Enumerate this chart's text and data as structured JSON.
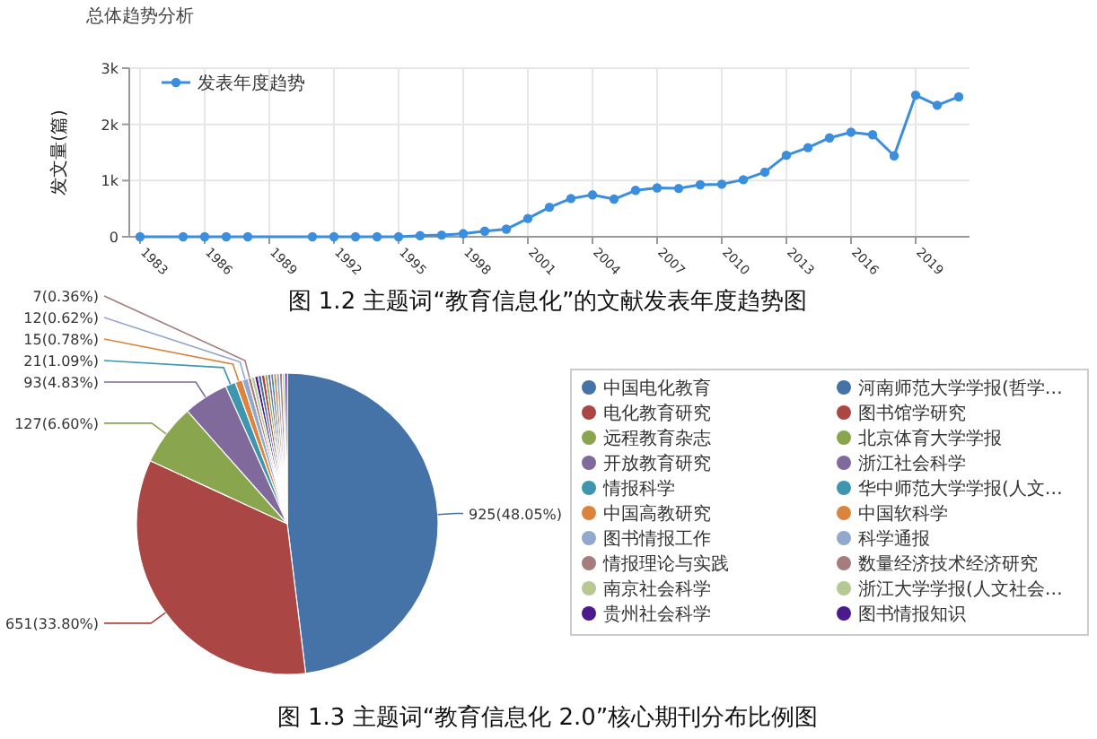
{
  "chart_data": [
    {
      "type": "line",
      "title": "图 1.2 主题词“教育信息化”的文献发表年度趋势图",
      "annotations": [
        "总体趋势分析"
      ],
      "ylabel": "发文量(篇)",
      "x": [
        1983,
        1985,
        1986,
        1987,
        1988,
        1991,
        1992,
        1993,
        1994,
        1995,
        1996,
        1997,
        1998,
        1999,
        2000,
        2001,
        2002,
        2003,
        2004,
        2005,
        2006,
        2007,
        2008,
        2009,
        2010,
        2011,
        2012,
        2013,
        2014,
        2015,
        2016,
        2017,
        2018,
        2019,
        2020,
        2021
      ],
      "xlim": [
        1982.5,
        2021.5
      ],
      "xticks": [
        1983,
        1986,
        1989,
        1992,
        1995,
        1998,
        2001,
        2004,
        2007,
        2010,
        2013,
        2016,
        2019
      ],
      "ylim": [
        0,
        3000
      ],
      "yticks": [
        {
          "value": 0,
          "label": "0"
        },
        {
          "value": 1000,
          "label": "1k"
        },
        {
          "value": 2000,
          "label": "2k"
        },
        {
          "value": 3000,
          "label": "3k"
        }
      ],
      "grid": true,
      "legend": "top left",
      "marker": "circle",
      "series": [
        {
          "name": "发表年度趋势",
          "color": "#3b8ede",
          "values": [
            0,
            0,
            0,
            0,
            0,
            0,
            0,
            0,
            0,
            0,
            20,
            30,
            55,
            100,
            135,
            325,
            525,
            680,
            745,
            670,
            825,
            870,
            860,
            925,
            935,
            1015,
            1150,
            1450,
            1585,
            1760,
            1860,
            1815,
            1440,
            2520,
            2340,
            2490
          ]
        }
      ]
    },
    {
      "type": "pie",
      "title": "图 1.3 主题词“教育信息化 2.0”核心期刊分布比例图",
      "legend": "right",
      "categories": [
        "中国电化教育",
        "电化教育研究",
        "远程教育杂志",
        "开放教育研究",
        "情报科学",
        "中国高教研究",
        "图书情报工作",
        "情报理论与实践",
        "南京社会科学",
        "贵州社会科学",
        "河南师范大学学报(哲学…",
        "图书馆学研究",
        "北京体育大学学报",
        "浙江社会科学",
        "华中师范大学学报(人文…",
        "中国软科学",
        "科学通报",
        "数量经济技术经济研究",
        "浙江大学学报(人文社会…",
        "图书情报知识"
      ],
      "values": [
        925,
        651,
        127,
        93,
        21,
        15,
        12,
        7,
        7,
        7,
        7,
        7,
        6,
        6,
        6,
        6,
        6,
        6,
        5,
        5
      ],
      "colors": [
        "#4572a7",
        "#aa4643",
        "#89a54e",
        "#80699b",
        "#3d96ae",
        "#db843d",
        "#92a8cd",
        "#a47d7c",
        "#b5ca92",
        "#4b1a8c",
        "#4572a7",
        "#aa4643",
        "#89a54e",
        "#80699b",
        "#3d96ae",
        "#db843d",
        "#92a8cd",
        "#a47d7c",
        "#b5ca92",
        "#4b1a8c"
      ],
      "value_labels": [
        "925(48.05%)",
        "651(33.80%)",
        "127(6.60%)",
        "93(4.83%)",
        "21(1.09%)",
        "15(0.78%)",
        "12(0.62%)",
        "7(0.36%)",
        null,
        null,
        null,
        null,
        null,
        null,
        null,
        null,
        null,
        null,
        null,
        null
      ]
    }
  ]
}
